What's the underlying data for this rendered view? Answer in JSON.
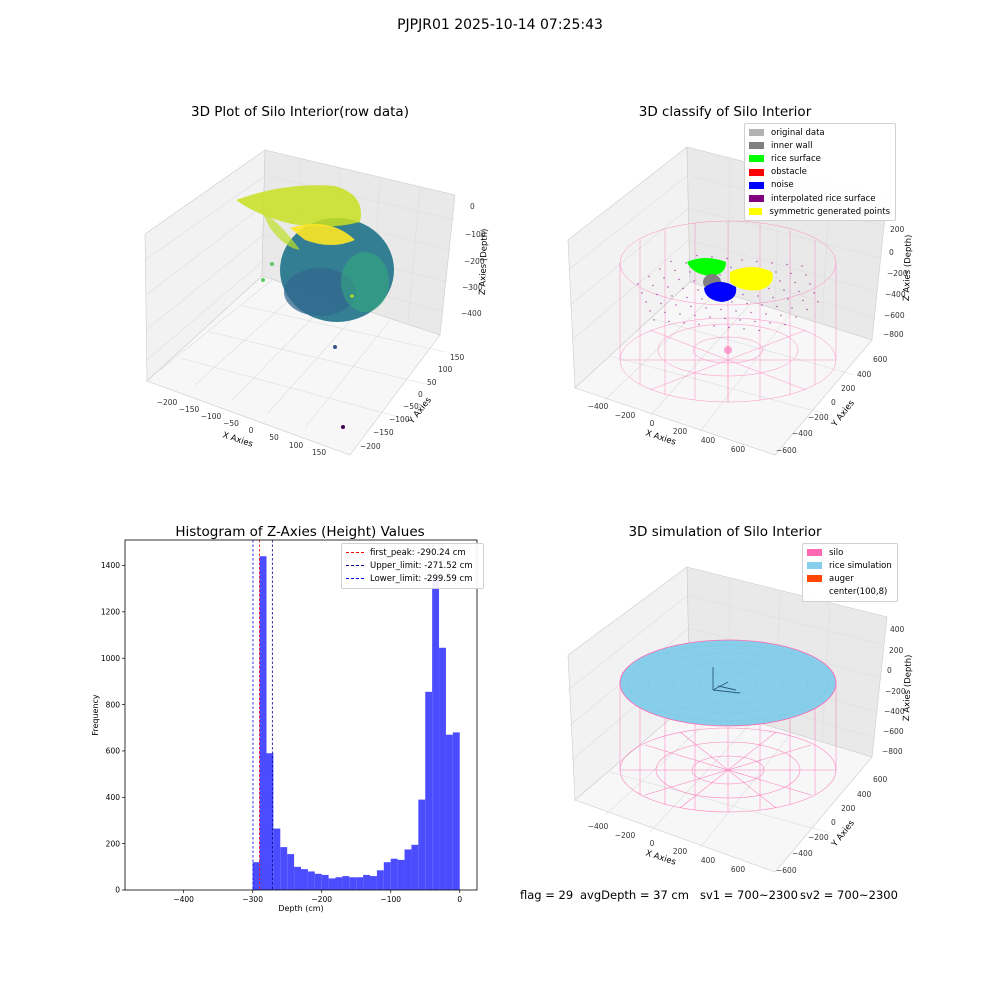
{
  "suptitle": "PJPJR01 2025-10-14 07:25:43",
  "footer": {
    "flag": "flag = 29",
    "avg_depth": "avgDepth = 37 cm",
    "sv1": "sv1 = 700~2300",
    "sv2": "sv2 = 700~2300"
  },
  "colors": {
    "viridis_low": "#2a788e",
    "viridis_mid": "#22a884",
    "viridis_high": "#c8e020",
    "silo_wire": "#ff69b4",
    "rice_simulation": "#87ceeb",
    "histogram_bar": "#4c4cff"
  },
  "chart_data": [
    {
      "type": "scatter",
      "subtype": "3d",
      "title": "3D Plot of Silo Interior(row data)",
      "xlabel": "X Axies",
      "ylabel": "Y Axies",
      "zlabel": "Z Axies (Depth)",
      "x_ticks": [
        "−200",
        "−150",
        "−100",
        "−50",
        "0",
        "50",
        "100",
        "150"
      ],
      "y_ticks": [
        "150",
        "100",
        "50",
        "0",
        "−50",
        "−100",
        "−150",
        "−200"
      ],
      "z_ticks": [
        "0",
        "−100",
        "−200",
        "−300",
        "−400"
      ],
      "colormap": "viridis"
    },
    {
      "type": "scatter",
      "subtype": "3d",
      "title": "3D classify of Silo Interior",
      "xlabel": "X Axies",
      "ylabel": "Y Axies",
      "zlabel": "Z Axies (Depth)",
      "x_ticks": [
        "−400",
        "−200",
        "0",
        "200",
        "400",
        "600"
      ],
      "y_ticks": [
        "600",
        "400",
        "200",
        "0",
        "−200",
        "−400",
        "−600"
      ],
      "z_ticks": [
        "200",
        "0",
        "−200",
        "−400",
        "−600",
        "−800"
      ],
      "legend_position": "top-right",
      "legend": [
        {
          "label": "original data",
          "color": "#b3b3b3"
        },
        {
          "label": "inner wall",
          "color": "#808080"
        },
        {
          "label": "rice surface",
          "color": "#00ff00"
        },
        {
          "label": "obstacle",
          "color": "#ff0000"
        },
        {
          "label": "noise",
          "color": "#0000ff"
        },
        {
          "label": "interpolated rice surface",
          "color": "#800080"
        },
        {
          "label": "symmetric generated points",
          "color": "#ffff00"
        }
      ]
    },
    {
      "type": "bar",
      "subtype": "histogram",
      "title": "Histogram of Z-Axies (Height) Values",
      "xlabel": "Depth (cm)",
      "ylabel": "Frequency",
      "xlim": [
        -485,
        25
      ],
      "ylim": [
        0,
        1510
      ],
      "x_ticks": [
        -400,
        -300,
        -200,
        -100,
        0
      ],
      "y_ticks": [
        0,
        200,
        400,
        600,
        800,
        1000,
        1200,
        1400
      ],
      "bin_width": 10,
      "bins": [
        {
          "x0": -300,
          "value": 120
        },
        {
          "x0": -290,
          "value": 1440
        },
        {
          "x0": -280,
          "value": 590
        },
        {
          "x0": -270,
          "value": 265
        },
        {
          "x0": -260,
          "value": 185
        },
        {
          "x0": -250,
          "value": 155
        },
        {
          "x0": -240,
          "value": 100
        },
        {
          "x0": -230,
          "value": 90
        },
        {
          "x0": -220,
          "value": 80
        },
        {
          "x0": -210,
          "value": 70
        },
        {
          "x0": -200,
          "value": 65
        },
        {
          "x0": -190,
          "value": 50
        },
        {
          "x0": -180,
          "value": 55
        },
        {
          "x0": -170,
          "value": 60
        },
        {
          "x0": -160,
          "value": 55
        },
        {
          "x0": -150,
          "value": 55
        },
        {
          "x0": -140,
          "value": 65
        },
        {
          "x0": -130,
          "value": 60
        },
        {
          "x0": -120,
          "value": 85
        },
        {
          "x0": -110,
          "value": 120
        },
        {
          "x0": -100,
          "value": 135
        },
        {
          "x0": -90,
          "value": 130
        },
        {
          "x0": -80,
          "value": 175
        },
        {
          "x0": -70,
          "value": 195
        },
        {
          "x0": -60,
          "value": 390
        },
        {
          "x0": -50,
          "value": 855
        },
        {
          "x0": -40,
          "value": 1340
        },
        {
          "x0": -30,
          "value": 1045
        },
        {
          "x0": -20,
          "value": 670
        },
        {
          "x0": -10,
          "value": 680
        }
      ],
      "vlines": [
        {
          "label": "first_peak: -290.24 cm",
          "x": -290.24,
          "color": "#ff0000"
        },
        {
          "label": "Upper_limit: -271.52 cm",
          "x": -271.52,
          "color": "#00008b"
        },
        {
          "label": "Lower_limit: -299.59 cm",
          "x": -299.59,
          "color": "#0000ff"
        }
      ],
      "legend_position": "top-right"
    },
    {
      "type": "scatter",
      "subtype": "3d-surface",
      "title": "3D simulation of Silo Interior",
      "xlabel": "X Axies",
      "ylabel": "Y Axies",
      "zlabel": "Z Axies (Depth)",
      "x_ticks": [
        "−400",
        "−200",
        "0",
        "200",
        "400",
        "600"
      ],
      "y_ticks": [
        "600",
        "400",
        "200",
        "0",
        "−200",
        "−400",
        "−600"
      ],
      "z_ticks": [
        "400",
        "200",
        "0",
        "−200",
        "−400",
        "−600",
        "−800"
      ],
      "legend_position": "top-right",
      "legend": [
        {
          "label": "silo",
          "color": "#ff69b4"
        },
        {
          "label": "rice simulation",
          "color": "#87ceeb"
        },
        {
          "label": "auger",
          "color": "#ff4500"
        },
        {
          "label": "center(100,8)",
          "color": ""
        }
      ]
    }
  ]
}
